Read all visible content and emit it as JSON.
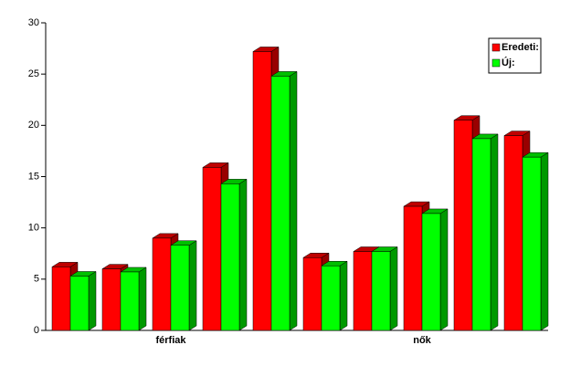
{
  "chart_data": {
    "type": "bar3d",
    "categories": [
      null,
      null,
      "férfiak",
      null,
      null,
      null,
      null,
      "nők",
      null,
      null
    ],
    "series": [
      {
        "name": "Eredeti:",
        "color": "#ff0000",
        "values": [
          6.2,
          6.0,
          9.0,
          15.9,
          27.2,
          7.1,
          7.7,
          12.1,
          20.5,
          19.0
        ]
      },
      {
        "name": "Új:",
        "color": "#00ff00",
        "values": [
          5.3,
          5.7,
          8.3,
          14.3,
          24.8,
          6.3,
          7.7,
          11.4,
          18.7,
          16.9
        ]
      }
    ],
    "ylim": [
      0,
      30
    ],
    "yticks": [
      0,
      5,
      10,
      15,
      20,
      25,
      30
    ],
    "legend": "top-right"
  }
}
